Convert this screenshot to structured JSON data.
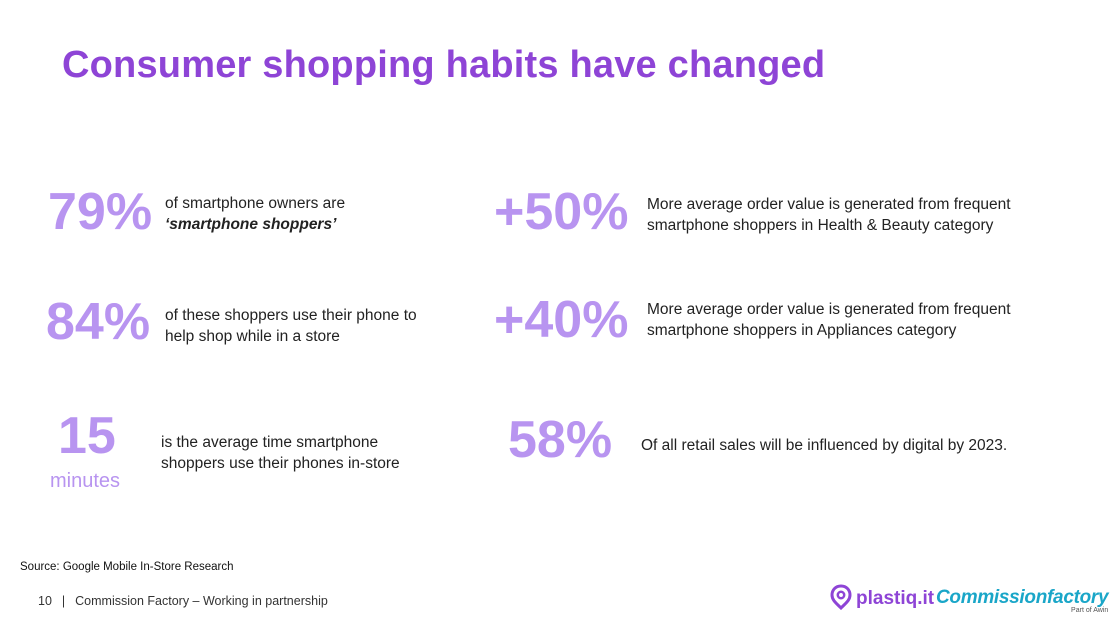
{
  "slide": {
    "title": "Consumer shopping habits have changed"
  },
  "stats": {
    "s1": {
      "value": "79%",
      "line1": "of smartphone owners are",
      "line2": "‘smartphone shoppers’"
    },
    "s2": {
      "value": "84%",
      "line1": "of these shoppers use their phone to",
      "line2": "help shop while in a store"
    },
    "s3": {
      "value": "15",
      "unit": "minutes",
      "line1": "is the average time smartphone",
      "line2": "shoppers use their phones in-store"
    },
    "s4": {
      "value": "+50%",
      "line1": "More average order value is generated from frequent",
      "line2": "smartphone shoppers in Health & Beauty category"
    },
    "s5": {
      "value": "+40%",
      "line1": "More average order value is generated from frequent",
      "line2": "smartphone shoppers in Appliances category"
    },
    "s6": {
      "value": "58%",
      "line1": "Of all retail sales will be influenced by digital by 2023."
    }
  },
  "source": "Source: Google Mobile In-Store Research",
  "footer": {
    "page_number": "10",
    "separator": "|",
    "text": "Commission Factory – Working in partnership"
  },
  "logos": {
    "plastiq": {
      "text": "plastiq.it",
      "icon": "plastiq-pin-icon",
      "color": "#8e44d6"
    },
    "commissionfactory": {
      "text": "Commissionfactory",
      "sub": "Part of Awin",
      "color": "#1aa6c8"
    }
  },
  "colors": {
    "title": "#8e44d6",
    "stat": "#b894f0",
    "body_text": "#222222"
  }
}
